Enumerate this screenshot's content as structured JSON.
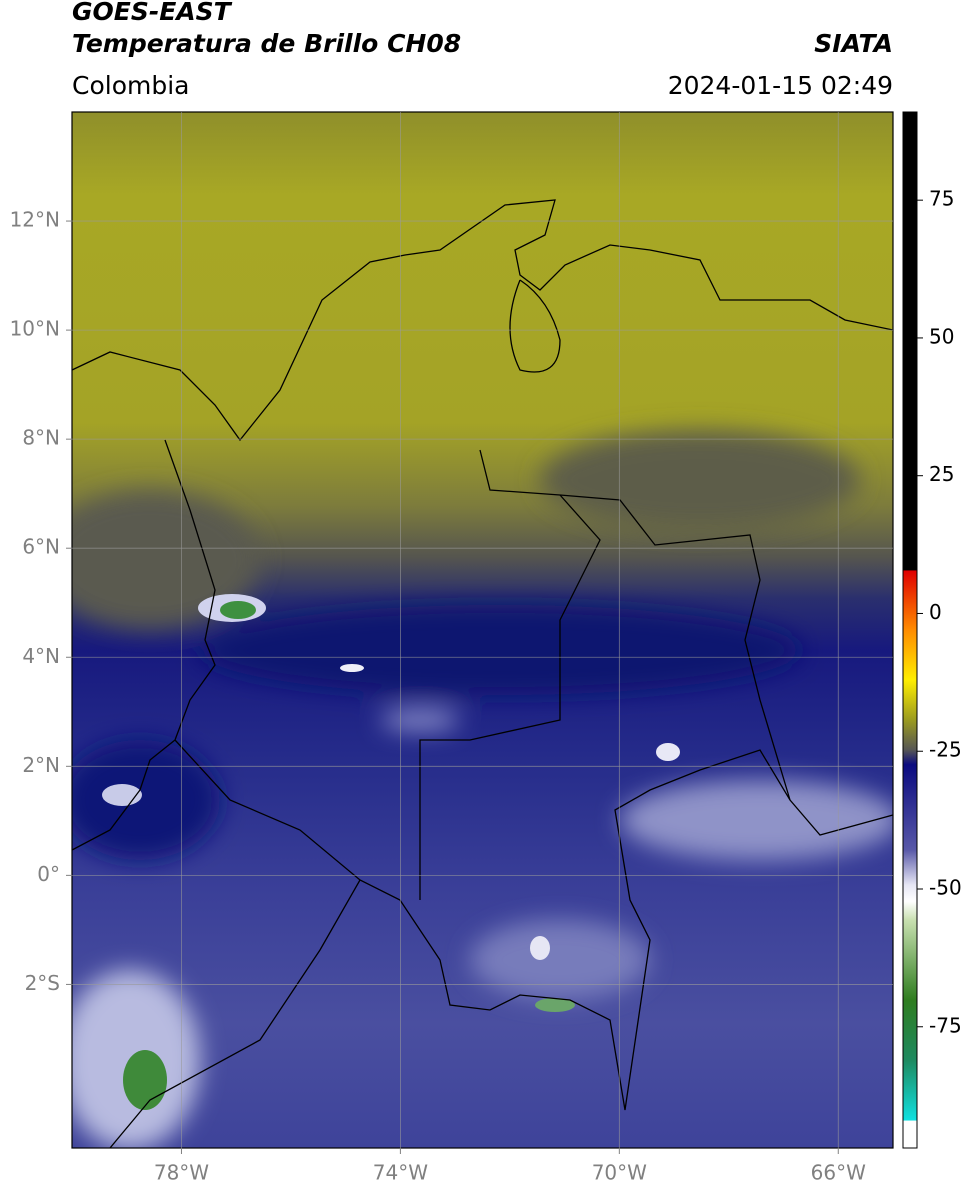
{
  "chart_data": {
    "type": "map",
    "title": "GOES-EAST",
    "subtitle": "Temperatura de Brillo CH08",
    "region": "Colombia",
    "source": "SIATA",
    "datetime": "2024-01-15 02:49",
    "xlim": [
      -80,
      -65
    ],
    "ylim": [
      -5,
      14
    ],
    "xticks": [
      {
        "value": -78,
        "label": "78°W"
      },
      {
        "value": -74,
        "label": "74°W"
      },
      {
        "value": -70,
        "label": "70°W"
      },
      {
        "value": -66,
        "label": "66°W"
      }
    ],
    "yticks": [
      {
        "value": 12,
        "label": "12°N"
      },
      {
        "value": 10,
        "label": "10°N"
      },
      {
        "value": 8,
        "label": "8°N"
      },
      {
        "value": 6,
        "label": "6°N"
      },
      {
        "value": 4,
        "label": "4°N"
      },
      {
        "value": 2,
        "label": "2°N"
      },
      {
        "value": 0,
        "label": "0°"
      },
      {
        "value": -2,
        "label": "2°S"
      }
    ],
    "grid": true,
    "colorbar": {
      "lim": [
        -97,
        91
      ],
      "ticks": [
        75,
        50,
        25,
        0,
        -25,
        -50,
        -75
      ]
    }
  }
}
